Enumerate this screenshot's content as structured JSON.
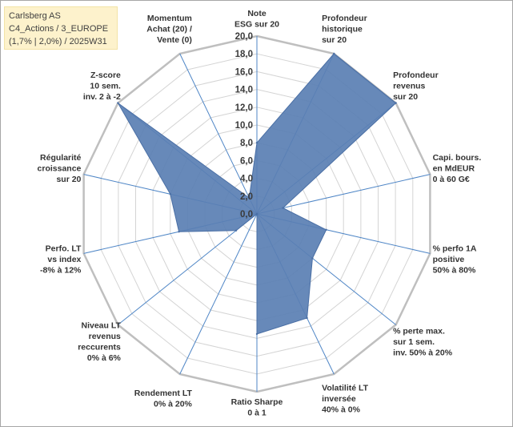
{
  "title_box": {
    "line1": "Carlsberg AS",
    "line2": "C4_Actions / 3_EUROPE",
    "line3": "(1,7% | 2,0%) / 2025W31"
  },
  "chart_data": {
    "type": "radar",
    "rlim": [
      0,
      20
    ],
    "tick_values": [
      0,
      2,
      4,
      6,
      8,
      10,
      12,
      14,
      16,
      18,
      20
    ],
    "tick_labels": [
      "0,0",
      "2,0",
      "4,0",
      "6,0",
      "8,0",
      "10,0",
      "12,0",
      "14,0",
      "16,0",
      "18,0",
      "20,0"
    ],
    "grid": true,
    "legend": "none",
    "colors": {
      "fill": "#5a7fb3",
      "stroke": "#4a6fa5",
      "grid": "#d4d4d4",
      "outer_ring": "#bfbfbf",
      "spoke": "#4f86c6"
    },
    "axes": [
      {
        "label": [
          "Note",
          "ESG sur 20"
        ],
        "value": 8.0
      },
      {
        "label": [
          "Profondeur",
          "historique",
          "sur 20"
        ],
        "value": 20.0
      },
      {
        "label": [
          "Profondeur",
          "revenus",
          "sur 20"
        ],
        "value": 20.0
      },
      {
        "label": [
          "Capi. bours.",
          "en MdEUR",
          "0 à 60 G€"
        ],
        "value": 3.0
      },
      {
        "label": [
          "% perfo 1A",
          "positive",
          "50% à 80%"
        ],
        "value": 8.0
      },
      {
        "label": [
          "% perte max.",
          "sur 1 sem.",
          "inv. 50% à 20%"
        ],
        "value": 8.0
      },
      {
        "label": [
          "Volatilité LT",
          "inversée",
          "40% à 0%"
        ],
        "value": 13.0
      },
      {
        "label": [
          "Ratio Sharpe",
          "0 à 1"
        ],
        "value": 13.5
      },
      {
        "label": [
          "Rendement LT",
          "0% à 20%"
        ],
        "value": 0.0
      },
      {
        "label": [
          "Niveau LT",
          "revenus",
          "reccurents",
          "0% à 6%"
        ],
        "value": 3.0
      },
      {
        "label": [
          "Perfo. LT",
          "vs index",
          "-8% à 12%"
        ],
        "value": 9.0
      },
      {
        "label": [
          "Régularité",
          "croissance",
          "sur 20"
        ],
        "value": 10.0
      },
      {
        "label": [
          "Z-score",
          "10 sem.",
          "inv. 2 à -2"
        ],
        "value": 20.0
      },
      {
        "label": [
          "Momentum",
          "Achat (20) /",
          "Vente (0)"
        ],
        "value": 2.0
      }
    ]
  }
}
